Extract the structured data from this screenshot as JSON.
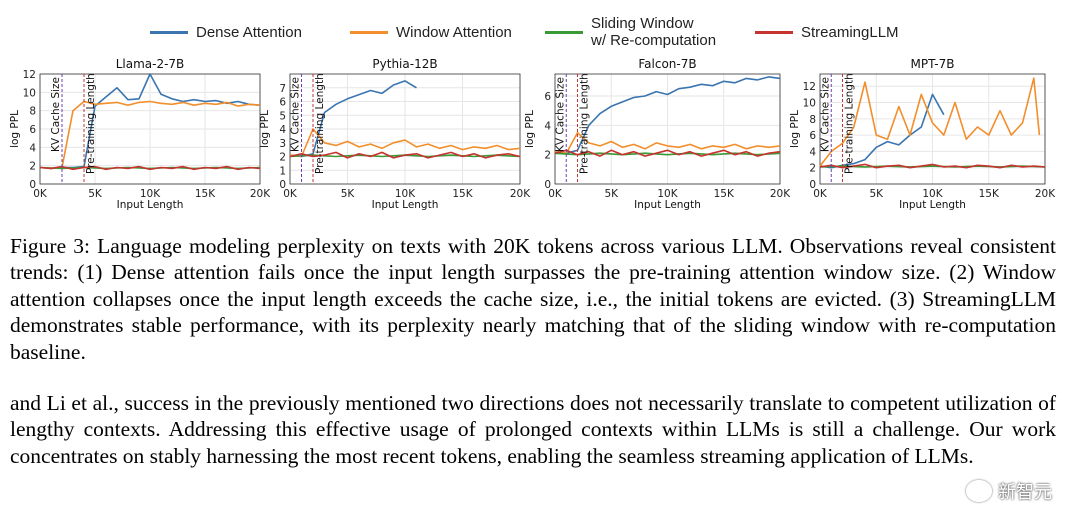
{
  "legend": [
    {
      "label": "Dense Attention",
      "color": "#3a75b0"
    },
    {
      "label": "Window Attention",
      "color": "#f28e2b"
    },
    {
      "label": "Sliding Window\nw/ Re-computation",
      "color": "#3a9a35"
    },
    {
      "label": "StreamingLLM",
      "color": "#c5342e"
    }
  ],
  "chart_data": [
    {
      "type": "line",
      "title": "Llama-2-7B",
      "xlabel": "Input Length",
      "ylabel": "log PPL",
      "xlim": [
        0,
        20000
      ],
      "ylim": [
        0,
        12
      ],
      "xticks": [
        "0K",
        "5K",
        "10K",
        "15K",
        "20K"
      ],
      "yticks": [
        0,
        2,
        4,
        6,
        8,
        10,
        12
      ],
      "kv_cache_size": 2000,
      "pretraining_length": 4000,
      "vline_labels": [
        "KV Cache Size",
        "Pre-training Length"
      ],
      "series": [
        {
          "name": "Dense Attention",
          "x": [
            0,
            1000,
            2000,
            3000,
            4000,
            5000,
            6000,
            7000,
            8000,
            9000,
            10000,
            11000,
            12000,
            13000,
            14000,
            15000,
            16000,
            17000,
            18000,
            19000,
            20000
          ],
          "values": [
            1.8,
            1.7,
            1.8,
            1.8,
            1.9,
            8.5,
            9.5,
            10.5,
            9.2,
            9.3,
            12.0,
            9.8,
            9.3,
            9.0,
            9.2,
            9.0,
            9.1,
            8.8,
            9.0,
            8.7,
            8.6
          ]
        },
        {
          "name": "Window Attention",
          "x": [
            0,
            1000,
            2000,
            3000,
            4000,
            5000,
            6000,
            7000,
            8000,
            9000,
            10000,
            11000,
            12000,
            13000,
            14000,
            15000,
            16000,
            17000,
            18000,
            19000,
            20000
          ],
          "values": [
            1.8,
            1.7,
            1.8,
            8.0,
            9.0,
            8.7,
            8.8,
            8.9,
            8.6,
            8.9,
            9.0,
            8.8,
            8.7,
            8.9,
            8.6,
            8.8,
            8.7,
            8.9,
            8.5,
            8.7,
            8.6
          ]
        },
        {
          "name": "Sliding Window w/ Re-computation",
          "x": [
            0,
            2000,
            4000,
            6000,
            8000,
            10000,
            12000,
            14000,
            16000,
            18000,
            20000
          ],
          "values": [
            1.8,
            1.7,
            1.8,
            1.7,
            1.8,
            1.7,
            1.8,
            1.7,
            1.8,
            1.7,
            1.8
          ]
        },
        {
          "name": "StreamingLLM",
          "x": [
            0,
            1000,
            2000,
            3000,
            4000,
            5000,
            6000,
            7000,
            8000,
            9000,
            10000,
            11000,
            12000,
            13000,
            14000,
            15000,
            16000,
            17000,
            18000,
            19000,
            20000
          ],
          "values": [
            1.8,
            1.7,
            1.9,
            1.6,
            1.8,
            1.9,
            1.6,
            1.8,
            1.7,
            1.9,
            1.6,
            1.8,
            1.7,
            1.9,
            1.6,
            1.8,
            1.7,
            1.9,
            1.6,
            1.8,
            1.7
          ]
        }
      ]
    },
    {
      "type": "line",
      "title": "Pythia-12B",
      "xlabel": "Input Length",
      "ylabel": "log PPL",
      "xlim": [
        0,
        20000
      ],
      "ylim": [
        0,
        8
      ],
      "xticks": [
        "0K",
        "5K",
        "10K",
        "15K",
        "20K"
      ],
      "yticks": [
        0,
        1,
        2,
        3,
        4,
        5,
        6,
        7
      ],
      "kv_cache_size": 1000,
      "pretraining_length": 2000,
      "vline_labels": [
        "KV Cache Size",
        "Pre-training Length"
      ],
      "series": [
        {
          "name": "Dense Attention",
          "x": [
            0,
            1000,
            2000,
            3000,
            4000,
            5000,
            6000,
            7000,
            8000,
            9000,
            10000,
            11000
          ],
          "values": [
            2.1,
            2.0,
            2.2,
            5.2,
            5.8,
            6.2,
            6.5,
            6.8,
            6.6,
            7.2,
            7.5,
            7.0
          ]
        },
        {
          "name": "Window Attention",
          "x": [
            0,
            1000,
            2000,
            3000,
            4000,
            5000,
            6000,
            7000,
            8000,
            9000,
            10000,
            11000,
            12000,
            13000,
            14000,
            15000,
            16000,
            17000,
            18000,
            19000,
            20000
          ],
          "values": [
            2.1,
            2.0,
            4.0,
            3.0,
            2.8,
            3.1,
            2.7,
            2.9,
            2.6,
            3.0,
            3.2,
            2.7,
            2.9,
            2.6,
            2.8,
            2.5,
            2.7,
            2.6,
            2.8,
            2.5,
            2.6
          ]
        },
        {
          "name": "Sliding Window w/ Re-computation",
          "x": [
            0,
            2000,
            4000,
            6000,
            8000,
            10000,
            12000,
            14000,
            16000,
            18000,
            20000
          ],
          "values": [
            2.0,
            2.1,
            2.0,
            2.1,
            2.0,
            2.1,
            2.0,
            2.1,
            2.0,
            2.1,
            2.0
          ]
        },
        {
          "name": "StreamingLLM",
          "x": [
            0,
            1000,
            2000,
            3000,
            4000,
            5000,
            6000,
            7000,
            8000,
            9000,
            10000,
            11000,
            12000,
            13000,
            14000,
            15000,
            16000,
            17000,
            18000,
            19000,
            20000
          ],
          "values": [
            2.0,
            2.2,
            2.0,
            2.1,
            2.3,
            1.9,
            2.2,
            2.0,
            2.3,
            1.9,
            2.1,
            2.2,
            1.9,
            2.1,
            2.3,
            2.0,
            2.2,
            1.9,
            2.1,
            2.2,
            2.0
          ]
        }
      ]
    },
    {
      "type": "line",
      "title": "Falcon-7B",
      "xlabel": "Input Length",
      "ylabel": "log PPL",
      "xlim": [
        0,
        20000
      ],
      "ylim": [
        0,
        7.5
      ],
      "xticks": [
        "0K",
        "5K",
        "10K",
        "15K",
        "20K"
      ],
      "yticks": [
        0,
        2,
        4,
        6
      ],
      "kv_cache_size": 1000,
      "pretraining_length": 2000,
      "vline_labels": [
        "KV Cache Size",
        "Pre-training Length"
      ],
      "series": [
        {
          "name": "Dense Attention",
          "x": [
            0,
            1000,
            2000,
            3000,
            4000,
            5000,
            6000,
            7000,
            8000,
            9000,
            10000,
            11000,
            12000,
            13000,
            14000,
            15000,
            16000,
            17000,
            18000,
            19000,
            20000
          ],
          "values": [
            2.2,
            2.1,
            2.3,
            4.0,
            4.8,
            5.3,
            5.6,
            5.9,
            6.0,
            6.3,
            6.1,
            6.5,
            6.6,
            6.8,
            6.7,
            7.0,
            6.9,
            7.2,
            7.1,
            7.3,
            7.2
          ]
        },
        {
          "name": "Window Attention",
          "x": [
            0,
            1000,
            2000,
            3000,
            4000,
            5000,
            6000,
            7000,
            8000,
            9000,
            10000,
            11000,
            12000,
            13000,
            14000,
            15000,
            16000,
            17000,
            18000,
            19000,
            20000
          ],
          "values": [
            2.2,
            2.1,
            3.5,
            2.8,
            2.6,
            2.9,
            2.5,
            2.7,
            2.4,
            2.8,
            2.6,
            2.5,
            2.7,
            2.4,
            2.6,
            2.5,
            2.7,
            2.4,
            2.6,
            2.5,
            2.6
          ]
        },
        {
          "name": "Sliding Window w/ Re-computation",
          "x": [
            0,
            2000,
            4000,
            6000,
            8000,
            10000,
            12000,
            14000,
            16000,
            18000,
            20000
          ],
          "values": [
            2.1,
            2.0,
            2.1,
            2.0,
            2.1,
            2.0,
            2.1,
            2.0,
            2.1,
            2.0,
            2.1
          ]
        },
        {
          "name": "StreamingLLM",
          "x": [
            0,
            1000,
            2000,
            3000,
            4000,
            5000,
            6000,
            7000,
            8000,
            9000,
            10000,
            11000,
            12000,
            13000,
            14000,
            15000,
            16000,
            17000,
            18000,
            19000,
            20000
          ],
          "values": [
            2.1,
            2.3,
            2.0,
            2.2,
            1.9,
            2.3,
            2.0,
            2.2,
            1.9,
            2.1,
            2.3,
            2.0,
            2.2,
            1.9,
            2.1,
            2.3,
            2.0,
            2.2,
            1.9,
            2.1,
            2.2
          ]
        }
      ]
    },
    {
      "type": "line",
      "title": "MPT-7B",
      "xlabel": "Input Length",
      "ylabel": "log PPL",
      "xlim": [
        0,
        20000
      ],
      "ylim": [
        0,
        13.5
      ],
      "xticks": [
        "0K",
        "5K",
        "10K",
        "15K",
        "20K"
      ],
      "yticks": [
        0,
        2,
        4,
        6,
        8,
        10,
        12
      ],
      "kv_cache_size": 1000,
      "pretraining_length": 2000,
      "vline_labels": [
        "KV Cache Size",
        "Pre-training Length"
      ],
      "series": [
        {
          "name": "Dense Attention",
          "x": [
            0,
            1000,
            2000,
            3000,
            4000,
            5000,
            6000,
            7000,
            8000,
            9000,
            10000,
            11000
          ],
          "values": [
            2.2,
            2.0,
            2.3,
            2.5,
            3.0,
            4.5,
            5.2,
            4.8,
            6.0,
            7.0,
            11.0,
            8.5
          ]
        },
        {
          "name": "Window Attention",
          "x": [
            0,
            1000,
            2000,
            3000,
            4000,
            5000,
            6000,
            7000,
            8000,
            9000,
            10000,
            11000,
            12000,
            13000,
            14000,
            15000,
            16000,
            17000,
            18000,
            19000,
            19500
          ],
          "values": [
            2.2,
            4.0,
            5.0,
            7.0,
            12.5,
            6.0,
            5.5,
            9.5,
            6.0,
            11.0,
            7.5,
            6.0,
            10.0,
            5.5,
            7.0,
            6.0,
            9.0,
            6.0,
            7.5,
            13.0,
            6.0
          ]
        },
        {
          "name": "Sliding Window w/ Re-computation",
          "x": [
            0,
            2000,
            4000,
            6000,
            8000,
            10000,
            12000,
            14000,
            16000,
            18000,
            20000
          ],
          "values": [
            2.1,
            2.2,
            2.1,
            2.2,
            2.1,
            2.2,
            2.1,
            2.2,
            2.1,
            2.2,
            2.1
          ]
        },
        {
          "name": "StreamingLLM",
          "x": [
            0,
            1000,
            2000,
            3000,
            4000,
            5000,
            6000,
            7000,
            8000,
            9000,
            10000,
            11000,
            12000,
            13000,
            14000,
            15000,
            16000,
            17000,
            18000,
            19000,
            20000
          ],
          "values": [
            2.1,
            2.3,
            2.0,
            2.2,
            2.4,
            2.0,
            2.2,
            2.3,
            2.0,
            2.2,
            2.4,
            2.1,
            2.2,
            2.0,
            2.3,
            2.2,
            2.0,
            2.3,
            2.1,
            2.2,
            2.1
          ]
        }
      ]
    }
  ],
  "caption": "Figure 3: Language modeling perplexity on texts with 20K tokens across various LLM. Observations reveal consistent trends: (1) Dense attention fails once the input length surpasses the pre-training attention window size. (2) Window attention collapses once the input length exceeds the cache size, i.e., the initial tokens are evicted. (3) StreamingLLM demonstrates stable performance, with its perplexity nearly matching that of the sliding window with re-computation baseline.",
  "paragraph": "and Li et al., success in the previously mentioned two directions does not necessarily translate to competent utilization of lengthy contexts. Addressing this effective usage of prolonged contexts within LLMs is still a challenge. Our work concentrates on stably harnessing the most recent tokens, enabling the seamless streaming application of LLMs.",
  "watermark": "新智元"
}
